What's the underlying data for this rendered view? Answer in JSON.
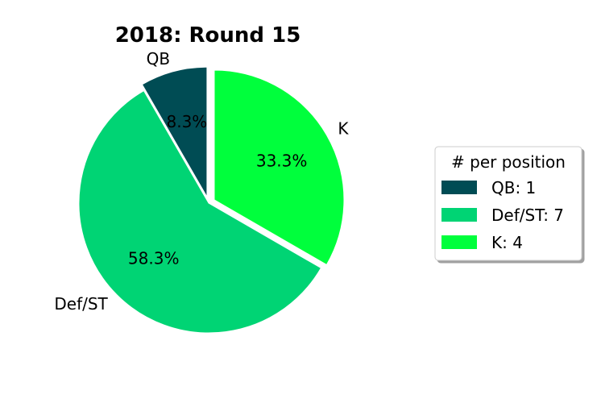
{
  "chart_data": {
    "type": "pie",
    "title": "2018: Round 15",
    "start_angle_deg": 90,
    "direction": "counterclockwise",
    "slices": [
      {
        "label": "QB",
        "value": 1,
        "pct_label": "8.3%",
        "color": "#004c54",
        "exploded": true
      },
      {
        "label": "Def/ST",
        "value": 7,
        "pct_label": "58.3%",
        "color": "#00d474",
        "exploded": false
      },
      {
        "label": "K",
        "value": 4,
        "pct_label": "33.3%",
        "color": "#00ff3c",
        "exploded": true
      }
    ],
    "legend": {
      "title": "# per position",
      "placement": "right",
      "entries": [
        "QB: 1",
        "Def/ST: 7",
        "K: 4"
      ]
    }
  }
}
